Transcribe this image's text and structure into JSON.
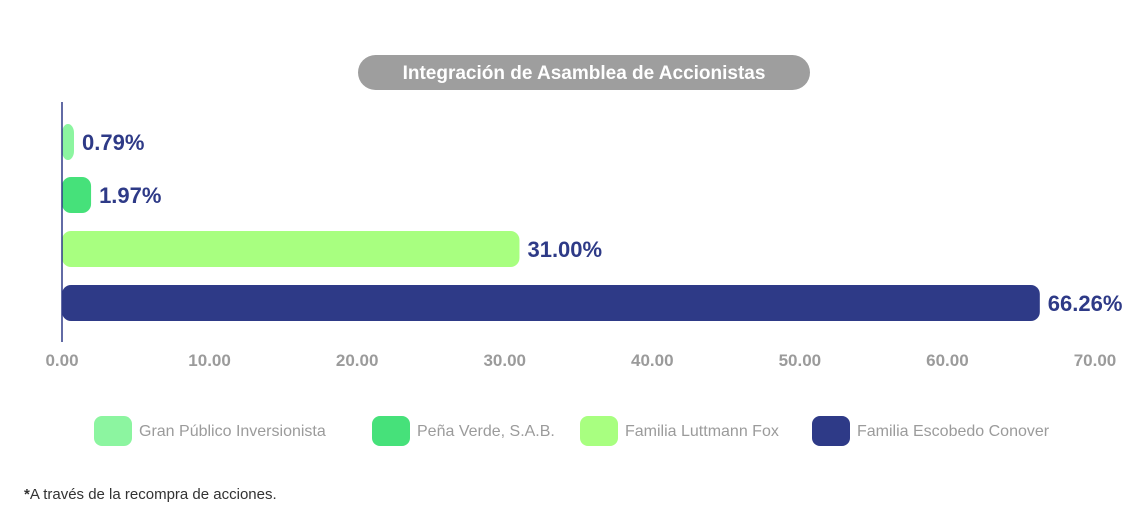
{
  "chart_data": {
    "type": "bar",
    "orientation": "horizontal",
    "title": "Integración de Asamblea de Accionistas",
    "categories": [
      "Gran Público Inversionista",
      "Peña Verde, S.A.B.",
      "Familia Luttmann Fox",
      "Familia Escobedo Conover"
    ],
    "values": [
      0.79,
      1.97,
      31.0,
      66.26
    ],
    "value_labels": [
      "0.79%",
      "1.97%",
      "31.00%",
      "66.26%"
    ],
    "colors": [
      "#8cf5a0",
      "#46e17a",
      "#a8ff80",
      "#2e3a87"
    ],
    "xlim": [
      0,
      70
    ],
    "xticks": [
      "0.00",
      "10.00",
      "20.00",
      "30.00",
      "40.00",
      "50.00",
      "60.00",
      "70.00"
    ],
    "xlabel": "",
    "ylabel": "",
    "legend_position": "bottom"
  },
  "footnote_star": "*",
  "footnote": "A través de la recompra de acciones."
}
